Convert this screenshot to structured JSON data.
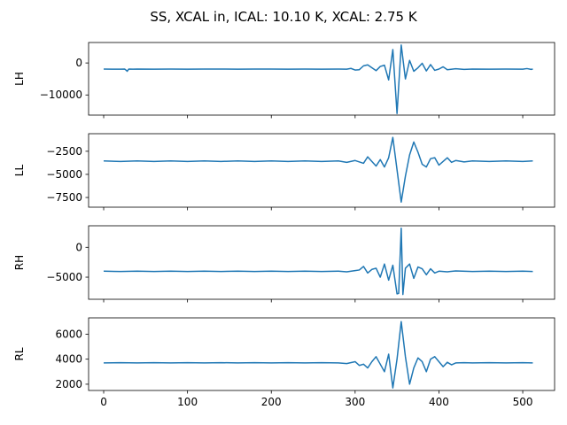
{
  "figure": {
    "title": "SS, XCAL in, ICAL: 10.10 K, XCAL: 2.75 K"
  },
  "colors": {
    "line": "#1f77b4",
    "axes": "#000000",
    "background": "#ffffff"
  },
  "chart_data": [
    {
      "type": "line",
      "ylabel": "LH",
      "xlim": [
        -18,
        538
      ],
      "ylim": [
        -16300,
        6400
      ],
      "yticks": [
        0,
        -10000
      ],
      "yticklabels": [
        "0",
        "−10000"
      ],
      "baseline": -1900,
      "x": [
        0,
        10,
        20,
        25,
        27,
        28,
        30,
        35,
        40,
        60,
        80,
        100,
        120,
        140,
        160,
        180,
        200,
        220,
        240,
        260,
        280,
        290,
        295,
        300,
        305,
        310,
        315,
        320,
        325,
        330,
        335,
        340,
        345,
        350,
        355,
        360,
        365,
        370,
        375,
        380,
        385,
        390,
        395,
        400,
        405,
        410,
        420,
        430,
        440,
        460,
        480,
        500,
        505,
        510,
        512
      ],
      "values": [
        -1900,
        -1950,
        -1950,
        -1900,
        -2300,
        -2600,
        -1900,
        -1950,
        -1900,
        -1950,
        -1900,
        -1950,
        -1900,
        -1900,
        -1950,
        -1900,
        -1900,
        -1950,
        -1900,
        -1950,
        -1900,
        -1950,
        -1700,
        -2200,
        -2100,
        -900,
        -600,
        -1500,
        -2400,
        -1100,
        -700,
        -5300,
        4200,
        -15800,
        5600,
        -5000,
        800,
        -2600,
        -1500,
        -100,
        -2500,
        -500,
        -2300,
        -1900,
        -1200,
        -2100,
        -1800,
        -2000,
        -1900,
        -1950,
        -1900,
        -1950,
        -1750,
        -2000,
        -1900
      ]
    },
    {
      "type": "line",
      "ylabel": "LL",
      "xlim": [
        -18,
        538
      ],
      "ylim": [
        -8550,
        -600
      ],
      "yticks": [
        -2500,
        -5000,
        -7500
      ],
      "yticklabels": [
        "−2500",
        "−5000",
        "−7500"
      ],
      "baseline": -3600,
      "x": [
        0,
        20,
        40,
        60,
        80,
        100,
        120,
        140,
        160,
        180,
        200,
        220,
        240,
        260,
        280,
        290,
        300,
        310,
        315,
        320,
        325,
        330,
        335,
        340,
        345,
        350,
        355,
        360,
        365,
        370,
        375,
        380,
        385,
        390,
        395,
        400,
        405,
        410,
        415,
        420,
        430,
        440,
        460,
        480,
        500,
        512
      ],
      "values": [
        -3550,
        -3600,
        -3550,
        -3600,
        -3550,
        -3600,
        -3550,
        -3600,
        -3550,
        -3600,
        -3550,
        -3600,
        -3550,
        -3600,
        -3550,
        -3700,
        -3500,
        -3800,
        -3100,
        -3600,
        -4100,
        -3400,
        -4200,
        -3200,
        -1000,
        -4500,
        -8000,
        -5200,
        -2900,
        -1500,
        -2600,
        -3900,
        -4200,
        -3300,
        -3200,
        -4000,
        -3600,
        -3200,
        -3700,
        -3500,
        -3650,
        -3550,
        -3600,
        -3550,
        -3600,
        -3550
      ]
    },
    {
      "type": "line",
      "ylabel": "RH",
      "xlim": [
        -18,
        538
      ],
      "ylim": [
        -8700,
        3600
      ],
      "yticks": [
        0,
        -5000
      ],
      "yticklabels": [
        "0",
        "−5000"
      ],
      "baseline": -4000,
      "x": [
        0,
        20,
        40,
        60,
        80,
        100,
        120,
        140,
        160,
        180,
        200,
        220,
        240,
        260,
        280,
        290,
        300,
        305,
        310,
        315,
        320,
        325,
        330,
        335,
        340,
        345,
        350,
        352,
        355,
        357,
        360,
        365,
        370,
        375,
        380,
        385,
        390,
        395,
        400,
        410,
        420,
        440,
        460,
        480,
        500,
        512
      ],
      "values": [
        -4000,
        -4050,
        -4000,
        -4050,
        -4000,
        -4050,
        -4000,
        -4050,
        -4000,
        -4050,
        -4000,
        -4050,
        -4000,
        -4050,
        -4000,
        -4100,
        -3900,
        -3800,
        -3200,
        -4300,
        -3700,
        -3500,
        -5000,
        -2800,
        -5500,
        -3000,
        -7800,
        -7700,
        3200,
        -7900,
        -3500,
        -2800,
        -5200,
        -3300,
        -3600,
        -4600,
        -3600,
        -4300,
        -4000,
        -4100,
        -3950,
        -4050,
        -4000,
        -4050,
        -4000,
        -4050
      ]
    },
    {
      "type": "line",
      "ylabel": "RL",
      "xlim": [
        -18,
        538
      ],
      "ylim": [
        1500,
        7300
      ],
      "yticks": [
        6000,
        4000,
        2000
      ],
      "yticklabels": [
        "6000",
        "4000",
        "2000"
      ],
      "baseline": 3700,
      "x": [
        0,
        20,
        40,
        60,
        80,
        100,
        120,
        140,
        160,
        180,
        200,
        220,
        240,
        260,
        280,
        290,
        300,
        305,
        310,
        315,
        320,
        325,
        330,
        335,
        340,
        345,
        350,
        355,
        360,
        365,
        370,
        375,
        380,
        385,
        390,
        395,
        400,
        405,
        410,
        415,
        420,
        430,
        440,
        460,
        480,
        500,
        512
      ],
      "values": [
        3700,
        3720,
        3700,
        3720,
        3700,
        3720,
        3700,
        3720,
        3700,
        3720,
        3700,
        3720,
        3700,
        3720,
        3700,
        3650,
        3800,
        3500,
        3600,
        3300,
        3800,
        4200,
        3600,
        3000,
        4400,
        1700,
        4000,
        7000,
        4200,
        2000,
        3300,
        4100,
        3800,
        3000,
        4000,
        4200,
        3800,
        3400,
        3750,
        3550,
        3700,
        3720,
        3700,
        3720,
        3700,
        3720,
        3700
      ]
    }
  ],
  "xaxis": {
    "ticks": [
      0,
      100,
      200,
      300,
      400,
      500
    ],
    "ticklabels": [
      "0",
      "100",
      "200",
      "300",
      "400",
      "500"
    ]
  }
}
